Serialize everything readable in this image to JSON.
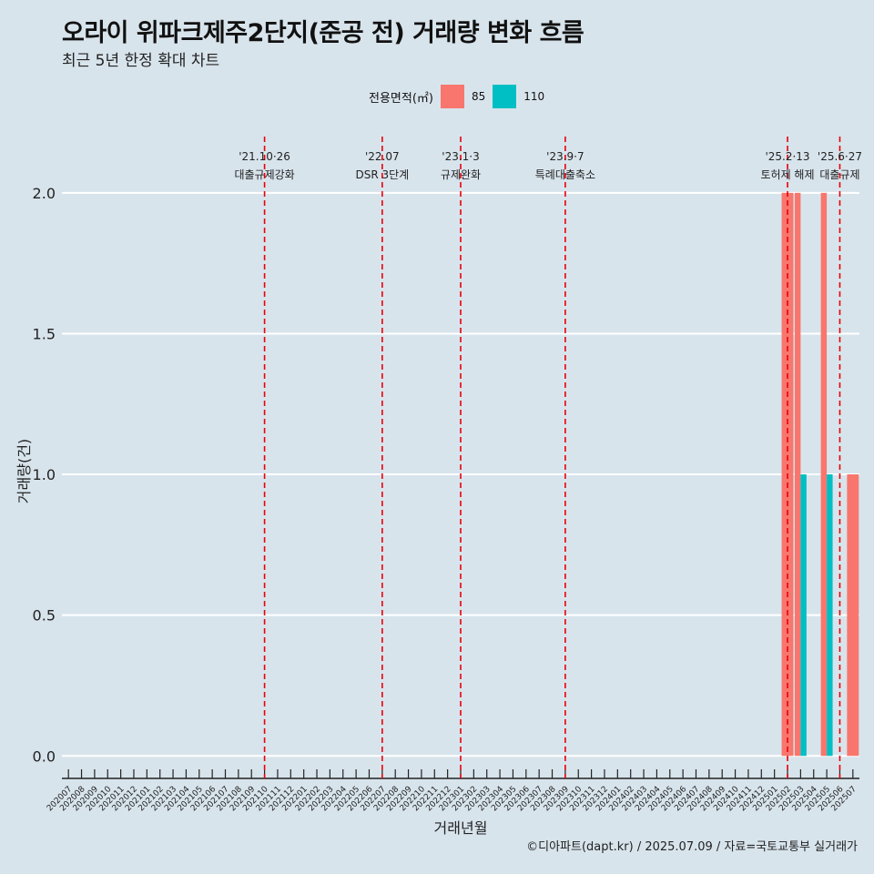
{
  "title": "오라이 위파크제주2단지(준공 전) 거래량 변화 흐름",
  "subtitle": "최근 5년 한정 확대 차트",
  "caption": "©디아파트(dapt.kr) / 2025.07.09 / 자료=국토교통부 실거래가",
  "legend": {
    "title": "전용면적(㎡)",
    "items": [
      {
        "label": "85",
        "color": "#f8766d"
      },
      {
        "label": "110",
        "color": "#00bfc4"
      }
    ]
  },
  "chart_data": {
    "type": "bar",
    "title": "오라이 위파크제주2단지(준공 전) 거래량 변화 흐름",
    "subtitle": "최근 5년 한정 확대 차트",
    "xlabel": "거래년월",
    "ylabel": "거래량(건)",
    "ylim": [
      -0.08,
      2.2
    ],
    "yticks": [
      "0.0",
      "0.5",
      "1.0",
      "1.5",
      "2.0"
    ],
    "grid": true,
    "legend_position": "top",
    "categories": [
      "202007",
      "202008",
      "202009",
      "202010",
      "202011",
      "202012",
      "202101",
      "202102",
      "202103",
      "202104",
      "202105",
      "202106",
      "202107",
      "202108",
      "202109",
      "202110",
      "202111",
      "202112",
      "202201",
      "202202",
      "202203",
      "202204",
      "202205",
      "202206",
      "202207",
      "202208",
      "202209",
      "202210",
      "202211",
      "202212",
      "202301",
      "202302",
      "202303",
      "202304",
      "202305",
      "202306",
      "202307",
      "202308",
      "202309",
      "202310",
      "202311",
      "202312",
      "202401",
      "202402",
      "202403",
      "202404",
      "202405",
      "202406",
      "202407",
      "202408",
      "202409",
      "202410",
      "202411",
      "202412",
      "202501",
      "202502",
      "202503",
      "202504",
      "202505",
      "202506",
      "202507"
    ],
    "bars": [
      {
        "x": "202502",
        "series": "85",
        "value": 2
      },
      {
        "x": "202503",
        "series": "85",
        "value": 2
      },
      {
        "x": "202503",
        "series": "110",
        "value": 1
      },
      {
        "x": "202505",
        "series": "85",
        "value": 2
      },
      {
        "x": "202505",
        "series": "110",
        "value": 1
      },
      {
        "x": "202507",
        "series": "85",
        "value": 1
      }
    ],
    "series": [
      {
        "name": "85",
        "color": "#f8766d"
      },
      {
        "name": "110",
        "color": "#00bfc4"
      }
    ],
    "events": [
      {
        "x": "202110",
        "date": "'21.10·26",
        "label": "대출규제강화"
      },
      {
        "x": "202207",
        "date": "'22.07",
        "label": "DSR 3단계"
      },
      {
        "x": "202301",
        "date": "'23.1·3",
        "label": "규제완화"
      },
      {
        "x": "202309",
        "date": "'23.9·7",
        "label": "특례대출축소"
      },
      {
        "x": "202502",
        "date": "'25.2·13",
        "label": "토허제 해제"
      },
      {
        "x": "202506",
        "date": "'25.6·27",
        "label": "대출규제"
      }
    ],
    "event_line_color": "#e8000b"
  }
}
